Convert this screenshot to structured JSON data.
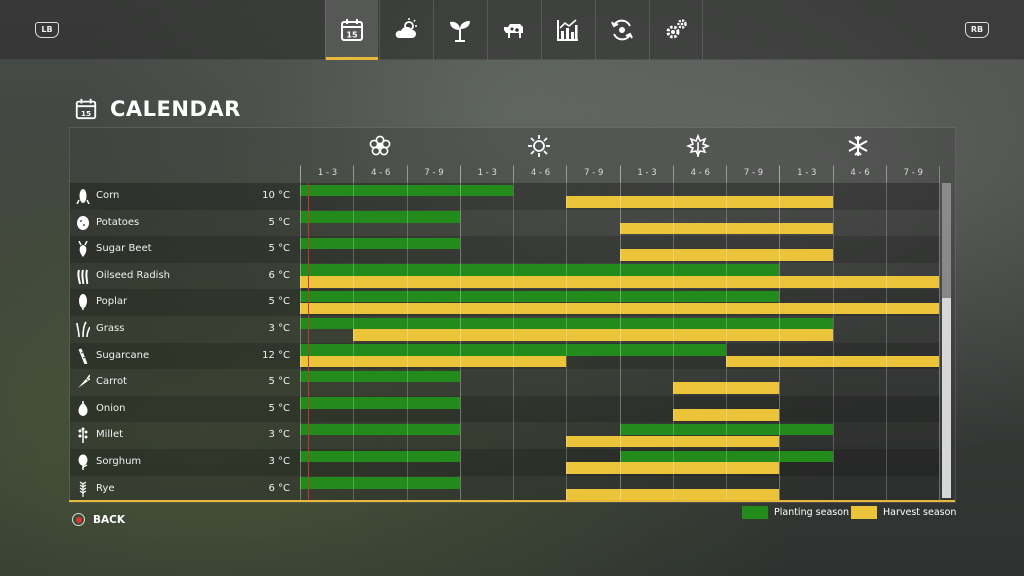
{
  "header": {
    "lb_label": "LB",
    "rb_label": "RB",
    "tabs": [
      {
        "icon": "calendar-icon",
        "text": "15",
        "active": true
      },
      {
        "icon": "weather-icon"
      },
      {
        "icon": "sprout-icon"
      },
      {
        "icon": "cow-icon"
      },
      {
        "icon": "statistics-icon"
      },
      {
        "icon": "economy-icon"
      },
      {
        "icon": "settings-icon"
      }
    ]
  },
  "page": {
    "title": "CALENDAR",
    "calendar_icon_day": "15"
  },
  "seasons": [
    {
      "name": "spring",
      "icon": "flower-icon"
    },
    {
      "name": "summer",
      "icon": "sun-icon"
    },
    {
      "name": "autumn",
      "icon": "leaf-icon"
    },
    {
      "name": "winter",
      "icon": "snowflake-icon"
    }
  ],
  "periods": [
    "1 - 3",
    "4 - 6",
    "7 - 9",
    "1 - 3",
    "4 - 6",
    "7 - 9",
    "1 - 3",
    "4 - 6",
    "7 - 9",
    "1 - 3",
    "4 - 6",
    "7 - 9"
  ],
  "crops": [
    {
      "name": "Corn",
      "icon": "corn-icon",
      "temp": "10 °C",
      "plant": [
        [
          0,
          4
        ]
      ],
      "harvest": [
        [
          5,
          10
        ]
      ]
    },
    {
      "name": "Potatoes",
      "icon": "potato-icon",
      "temp": "5 °C",
      "plant": [
        [
          0,
          3
        ]
      ],
      "harvest": [
        [
          6,
          10
        ]
      ]
    },
    {
      "name": "Sugar Beet",
      "icon": "sugar-beet-icon",
      "temp": "5 °C",
      "plant": [
        [
          0,
          3
        ]
      ],
      "harvest": [
        [
          6,
          10
        ]
      ]
    },
    {
      "name": "Oilseed Radish",
      "icon": "radish-icon",
      "temp": "6 °C",
      "plant": [
        [
          0,
          9
        ]
      ],
      "harvest": [
        [
          0,
          12
        ]
      ]
    },
    {
      "name": "Poplar",
      "icon": "poplar-icon",
      "temp": "5 °C",
      "plant": [
        [
          0,
          9
        ]
      ],
      "harvest": [
        [
          0,
          12
        ]
      ]
    },
    {
      "name": "Grass",
      "icon": "grass-icon",
      "temp": "3 °C",
      "plant": [
        [
          0,
          10
        ]
      ],
      "harvest": [
        [
          1,
          10
        ]
      ]
    },
    {
      "name": "Sugarcane",
      "icon": "sugarcane-icon",
      "temp": "12 °C",
      "plant": [
        [
          0,
          8
        ]
      ],
      "harvest": [
        [
          0,
          5
        ],
        [
          8,
          12
        ]
      ]
    },
    {
      "name": "Carrot",
      "icon": "carrot-icon",
      "temp": "5 °C",
      "plant": [
        [
          0,
          3
        ]
      ],
      "harvest": [
        [
          7,
          9
        ]
      ]
    },
    {
      "name": "Onion",
      "icon": "onion-icon",
      "temp": "5 °C",
      "plant": [
        [
          0,
          3
        ]
      ],
      "harvest": [
        [
          7,
          9
        ]
      ]
    },
    {
      "name": "Millet",
      "icon": "millet-icon",
      "temp": "3 °C",
      "plant": [
        [
          0,
          3
        ],
        [
          6,
          10
        ]
      ],
      "harvest": [
        [
          5,
          9
        ]
      ]
    },
    {
      "name": "Sorghum",
      "icon": "sorghum-icon",
      "temp": "3 °C",
      "plant": [
        [
          0,
          3
        ],
        [
          6,
          10
        ]
      ],
      "harvest": [
        [
          5,
          9
        ]
      ]
    },
    {
      "name": "Rye",
      "icon": "rye-icon",
      "temp": "6 °C",
      "plant": [
        [
          0,
          3
        ]
      ],
      "harvest": [
        [
          5,
          9
        ]
      ]
    }
  ],
  "footer": {
    "back_label": "BACK",
    "legend_planting": "Planting season",
    "legend_harvest": "Harvest season",
    "planting_color": "#228b1b",
    "harvest_color": "#ecc43a"
  }
}
